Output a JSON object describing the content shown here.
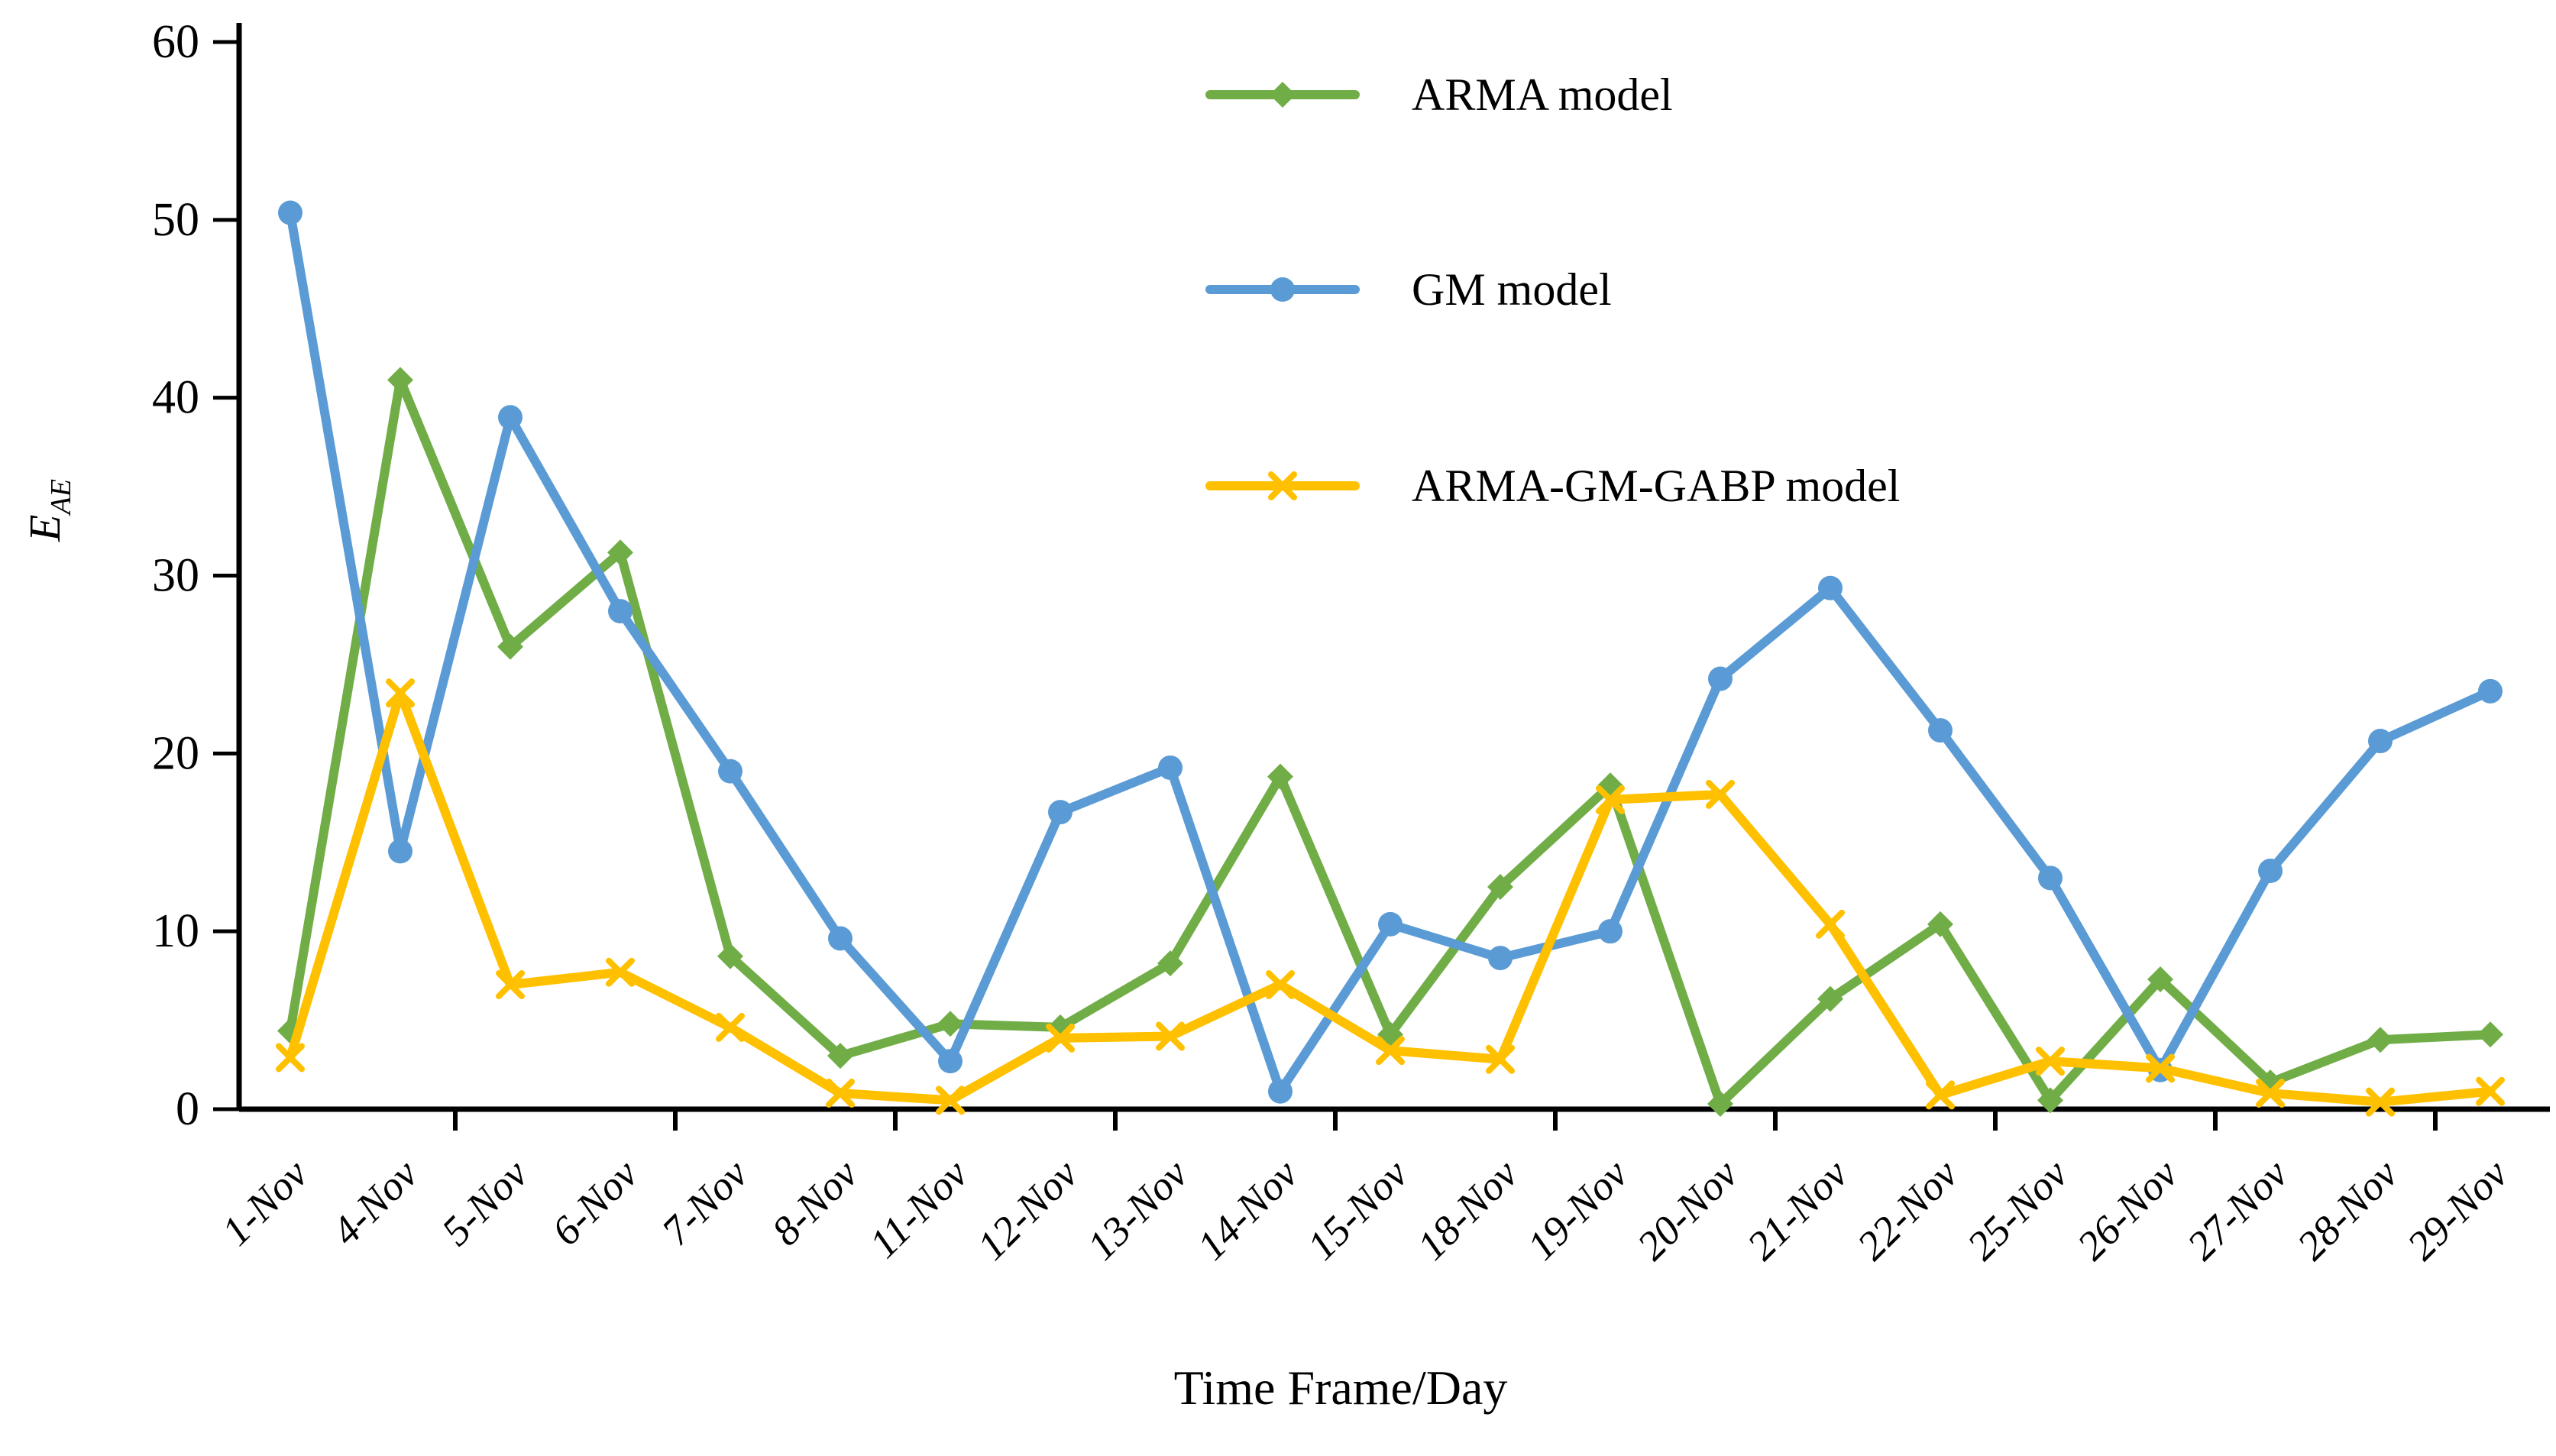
{
  "chart_data": {
    "type": "line",
    "title": "",
    "xlabel": "Time Frame/Day",
    "ylabel": "E_AE",
    "ylabel_main": "E",
    "ylabel_sub": "AE",
    "ylim": [
      0,
      60
    ],
    "yticks": [
      0,
      10,
      20,
      30,
      40,
      50,
      60
    ],
    "grid": false,
    "legend_position": "top-center",
    "background_color": "#FFFFFF",
    "axis_color": "#000000",
    "categories": [
      "1-Nov",
      "4-Nov",
      "5-Nov",
      "6-Nov",
      "7-Nov",
      "8-Nov",
      "11-Nov",
      "12-Nov",
      "13-Nov",
      "14-Nov",
      "15-Nov",
      "18-Nov",
      "19-Nov",
      "20-Nov",
      "21-Nov",
      "22-Nov",
      "25-Nov",
      "26-Nov",
      "27-Nov",
      "28-Nov",
      "29-Nov"
    ],
    "series": [
      {
        "name": "ARMA model",
        "color": "#70AD47",
        "marker": "diamond",
        "values": [
          4.4,
          41.0,
          26.0,
          31.3,
          8.6,
          3.0,
          4.8,
          4.6,
          8.2,
          18.7,
          4.2,
          12.5,
          18.2,
          0.3,
          6.2,
          10.4,
          0.5,
          7.3,
          1.5,
          3.9,
          4.2
        ]
      },
      {
        "name": "GM model",
        "color": "#5B9BD5",
        "marker": "circle",
        "values": [
          50.4,
          14.5,
          38.9,
          28.0,
          19.0,
          9.6,
          2.7,
          16.7,
          19.2,
          1.0,
          10.4,
          8.5,
          10.0,
          24.2,
          29.3,
          21.3,
          13.0,
          2.2,
          13.4,
          20.7,
          23.5
        ]
      },
      {
        "name": "ARMA-GM-GABP model",
        "color": "#FFC000",
        "marker": "asterisk",
        "values": [
          2.9,
          23.4,
          7.0,
          7.7,
          4.6,
          0.9,
          0.5,
          4.0,
          4.1,
          7.0,
          3.3,
          2.8,
          17.4,
          17.7,
          10.4,
          0.8,
          2.7,
          2.3,
          0.9,
          0.4,
          1.0
        ]
      }
    ]
  }
}
